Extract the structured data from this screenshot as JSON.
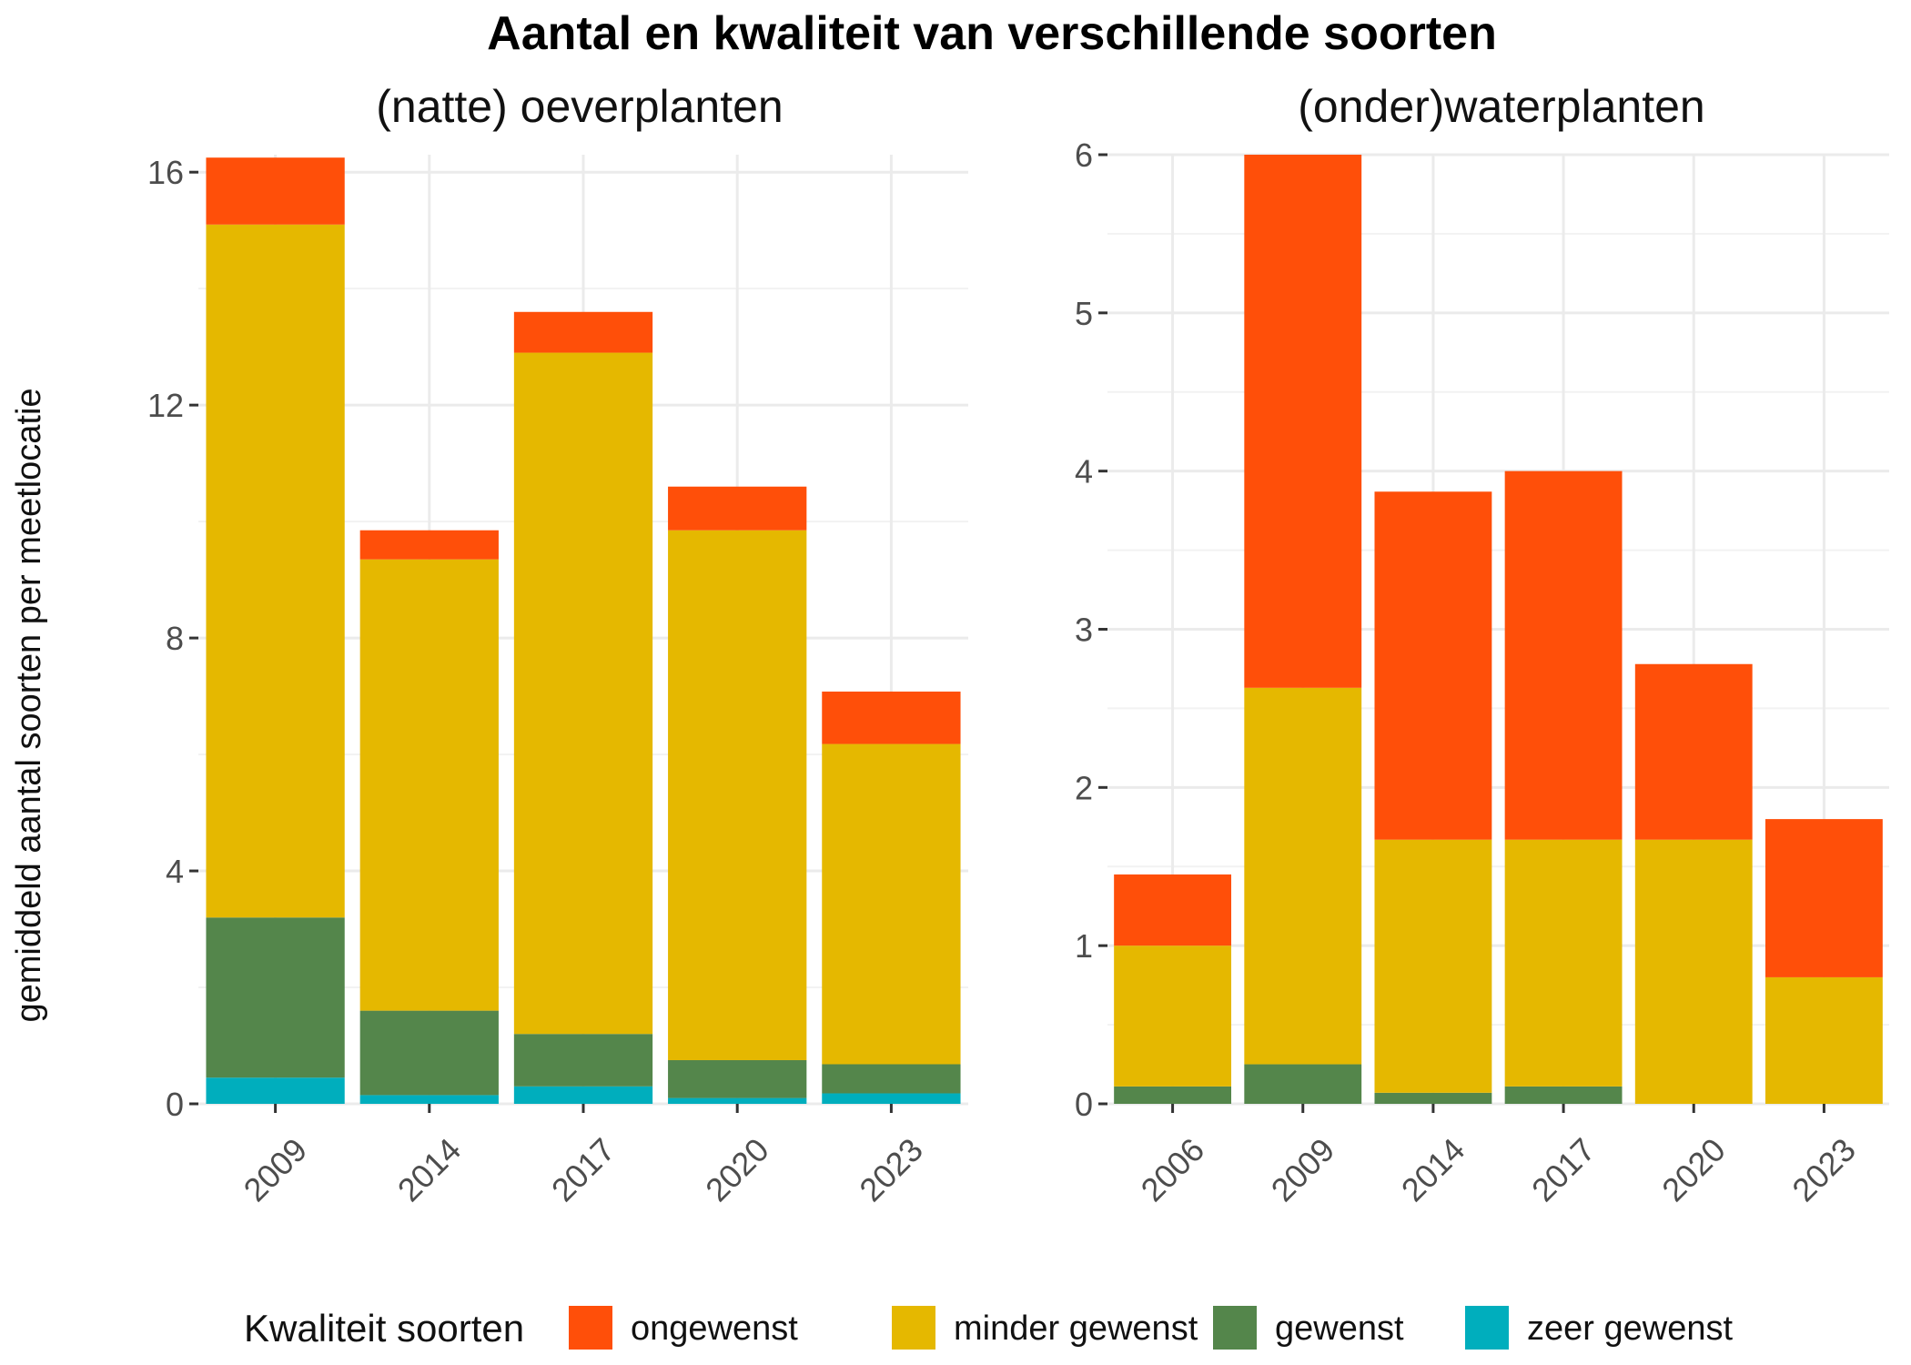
{
  "chart_data": {
    "type": "bar",
    "stacked": true,
    "title": "Aantal en kwaliteit van verschillende soorten",
    "ylabel": "gemiddeld aantal soorten per meetlocatie",
    "legend": {
      "title": "Kwaliteit soorten",
      "placement": "bottom",
      "entries": [
        "ongewenst",
        "minder gewenst",
        "gewenst",
        "zeer gewenst"
      ]
    },
    "colors": {
      "ongewenst": "#FF4F09",
      "minder gewenst": "#E5B800",
      "gewenst": "#54864B",
      "zeer gewenst": "#00AEBD"
    },
    "grid": true,
    "panels": [
      {
        "subtitle": "(natte) oeverplanten",
        "categories": [
          "2009",
          "2014",
          "2017",
          "2020",
          "2023"
        ],
        "ylim": [
          0,
          16.3
        ],
        "yticks": [
          0,
          4,
          8,
          12,
          16
        ],
        "series": [
          {
            "name": "zeer gewenst",
            "values": [
              0.45,
              0.15,
              0.3,
              0.1,
              0.18
            ]
          },
          {
            "name": "gewenst",
            "values": [
              2.75,
              1.45,
              0.9,
              0.65,
              0.5
            ]
          },
          {
            "name": "minder gewenst",
            "values": [
              11.9,
              7.75,
              11.7,
              9.1,
              5.5
            ]
          },
          {
            "name": "ongewenst",
            "values": [
              1.15,
              0.5,
              0.7,
              0.75,
              0.9
            ]
          }
        ]
      },
      {
        "subtitle": "(onder)waterplanten",
        "categories": [
          "2006",
          "2009",
          "2014",
          "2017",
          "2020",
          "2023"
        ],
        "ylim": [
          0,
          6
        ],
        "yticks": [
          0,
          1,
          2,
          3,
          4,
          5,
          6
        ],
        "series": [
          {
            "name": "zeer gewenst",
            "values": [
              0,
              0,
              0,
              0,
              0,
              0
            ]
          },
          {
            "name": "gewenst",
            "values": [
              0.11,
              0.25,
              0.07,
              0.11,
              0,
              0
            ]
          },
          {
            "name": "minder gewenst",
            "values": [
              0.89,
              2.38,
              1.6,
              1.56,
              1.67,
              0.8
            ]
          },
          {
            "name": "ongewenst",
            "values": [
              0.45,
              3.37,
              2.2,
              2.33,
              1.11,
              1.0
            ]
          }
        ]
      }
    ]
  }
}
